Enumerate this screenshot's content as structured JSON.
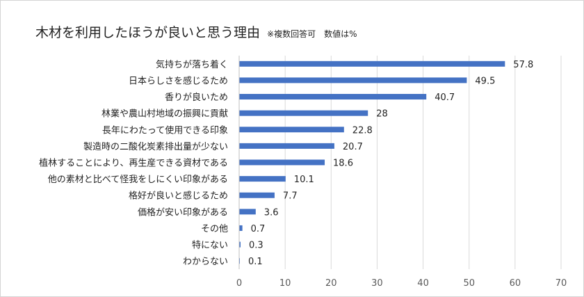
{
  "chart_data": {
    "type": "bar",
    "orientation": "horizontal",
    "title": "木材を利用したほうが良いと思う理由",
    "subtitle": "※複数回答可　数値は%",
    "categories": [
      "気持ちが落ち着く",
      "日本らしさを感じるため",
      "香りが良いため",
      "林業や農山村地域の振興に貢献",
      "長年にわたって使用できる印象",
      "製造時の二酸化炭素排出量が少ない",
      "植林することにより、再生産できる資材である",
      "他の素材と比べて怪我をしにくい印象がある",
      "格好が良いと感じるため",
      "価格が安い印象がある",
      "その他",
      "特にない",
      "わからない"
    ],
    "values": [
      57.8,
      49.5,
      40.7,
      28,
      22.8,
      20.7,
      18.6,
      10.1,
      7.7,
      3.6,
      0.7,
      0.3,
      0.1
    ],
    "value_labels": [
      "57.8",
      "49.5",
      "40.7",
      "28",
      "22.8",
      "20.7",
      "18.6",
      "10.1",
      "7.7",
      "3.6",
      "0.7",
      "0.3",
      "0.1"
    ],
    "xlim": [
      0,
      70
    ],
    "xticks": [
      "0",
      "10",
      "20",
      "30",
      "40",
      "50",
      "60",
      "70"
    ],
    "xlabel": "",
    "ylabel": "",
    "grid": true,
    "legend": "none",
    "colors": {
      "bar": "#4472c4",
      "grid": "#d9d9d9",
      "text": "#222222",
      "tick": "#595959"
    }
  }
}
